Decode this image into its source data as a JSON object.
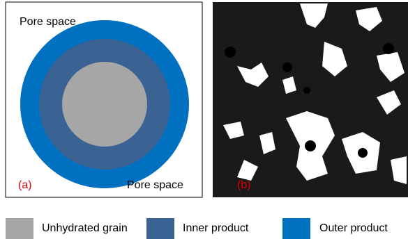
{
  "panels": [
    {
      "label": "(a)",
      "annotations": [
        "Pore space",
        "Pore space"
      ]
    },
    {
      "label": "(b)"
    }
  ],
  "legend": [
    "Unhydrated grain",
    "Inner product",
    "Outer product"
  ]
}
